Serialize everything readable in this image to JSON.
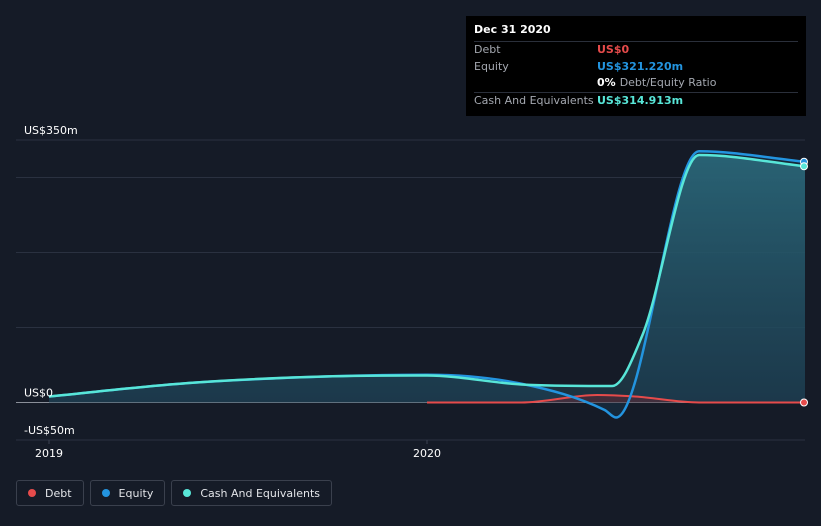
{
  "tooltip": {
    "date": "Dec 31 2020",
    "rows": [
      {
        "label": "Debt",
        "value": "US$0",
        "color": "#e64b4b"
      },
      {
        "label": "Equity",
        "value": "US$321.220m",
        "color": "#2394df"
      },
      {
        "label": "",
        "value": "0%",
        "sub": "Debt/Equity Ratio",
        "color": "#ffffff"
      },
      {
        "label": "Cash And Equivalents",
        "value": "US$314.913m",
        "color": "#58e6d8"
      }
    ]
  },
  "legend": [
    {
      "label": "Debt",
      "color": "#e64b4b"
    },
    {
      "label": "Equity",
      "color": "#2394df"
    },
    {
      "label": "Cash And Equivalents",
      "color": "#58e6d8"
    }
  ],
  "chart_data": {
    "type": "area",
    "title": "",
    "xlabel": "",
    "ylabel": "",
    "ylim": [
      -50,
      350
    ],
    "xlim": [
      2019.0,
      2021.0
    ],
    "y_tick_labels": [
      {
        "value": 350,
        "label": "US$350m"
      },
      {
        "value": 0,
        "label": "US$0"
      },
      {
        "value": -50,
        "label": "-US$50m"
      }
    ],
    "gridlines": [
      350,
      300,
      200,
      100,
      0,
      -50
    ],
    "x_tick_labels": [
      {
        "value": 2019.0,
        "label": "2019"
      },
      {
        "value": 2020.0,
        "label": "2020"
      }
    ],
    "series": [
      {
        "name": "Cash And Equivalents",
        "color": "#58e6d8",
        "x": [
          2019.0,
          2019.37,
          2019.75,
          2020.0,
          2020.25,
          2020.49,
          2020.57,
          2020.72,
          2021.0
        ],
        "values": [
          8,
          26,
          35,
          36,
          24,
          22,
          90,
          330,
          315
        ]
      },
      {
        "name": "Equity",
        "color": "#2394df",
        "x": [
          2019.0,
          2019.37,
          2019.75,
          2020.0,
          2020.25,
          2020.47,
          2020.5,
          2020.72,
          2021.0
        ],
        "values": [
          8,
          26,
          35,
          37,
          25,
          -10,
          -20,
          335,
          321
        ]
      },
      {
        "name": "Debt",
        "color": "#e64b4b",
        "x": [
          2020.0,
          2020.25,
          2020.45,
          2020.55,
          2020.72,
          2021.0
        ],
        "values": [
          0,
          0,
          10,
          8,
          0,
          0
        ]
      }
    ]
  }
}
